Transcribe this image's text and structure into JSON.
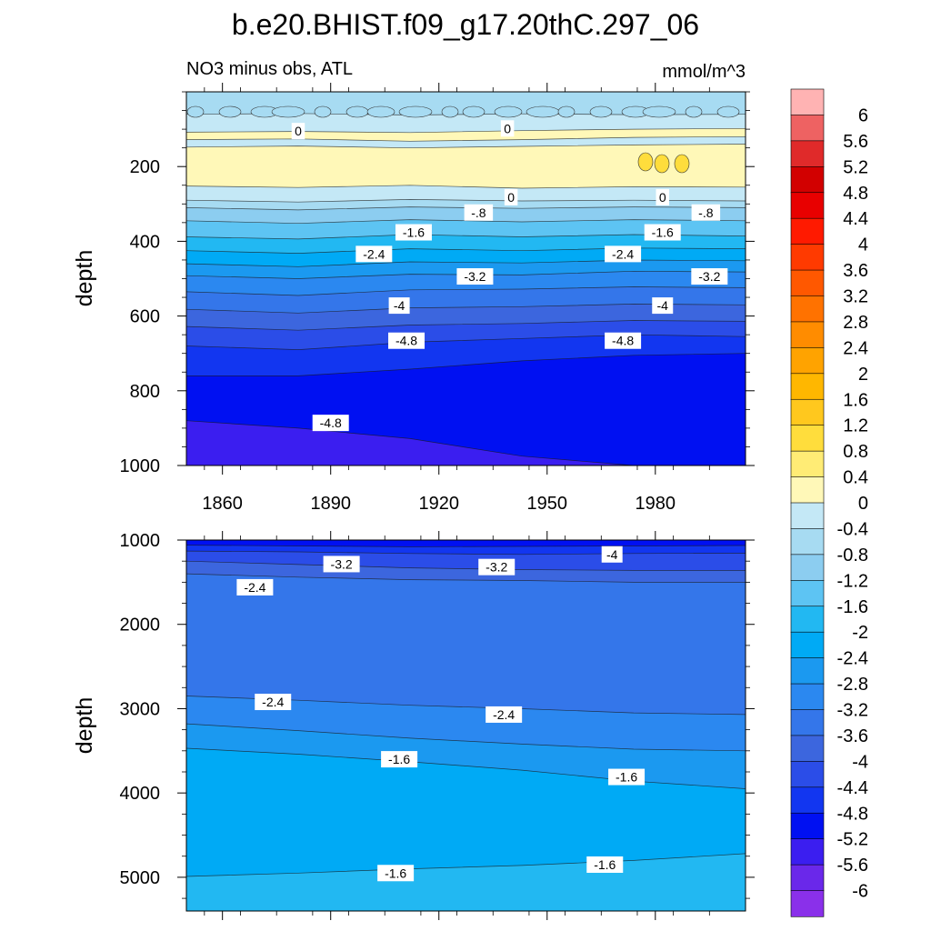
{
  "chart_data": [
    {
      "type": "contour",
      "figure_title": "b.e20.BHIST.f09_g17.20thC.297_06",
      "title_left": "NO3 minus obs, ATL",
      "title_right": "mmol/m^3",
      "ylabel": "depth",
      "xlabel": "",
      "xlim": [
        1850,
        2005
      ],
      "ylim": [
        1000,
        0
      ],
      "x_ticks": [
        1860,
        1890,
        1920,
        1950,
        1980
      ],
      "y_ticks": [
        200,
        400,
        600,
        800,
        1000
      ],
      "panel_position": "top",
      "band_boundaries": [
        {
          "level": 0.0,
          "depth": [
            60,
            58,
            62,
            59,
            61,
            60
          ]
        },
        {
          "level": 0.4,
          "depth": [
            108,
            106,
            109,
            104,
            100,
            98
          ]
        },
        {
          "level": 0.0,
          "depth": [
            128,
            126,
            132,
            128,
            122,
            120
          ]
        },
        {
          "level": 0.4,
          "depth": [
            148,
            145,
            150,
            146,
            142,
            140
          ]
        },
        {
          "level": 0.0,
          "depth": [
            252,
            256,
            250,
            258,
            254,
            255
          ]
        },
        {
          "level": -0.4,
          "depth": [
            290,
            295,
            288,
            292,
            290,
            292
          ]
        },
        {
          "level": -0.8,
          "depth": [
            310,
            316,
            308,
            312,
            308,
            310
          ]
        },
        {
          "level": -1.2,
          "depth": [
            345,
            352,
            342,
            348,
            342,
            345
          ]
        },
        {
          "level": -1.6,
          "depth": [
            388,
            394,
            382,
            388,
            382,
            386
          ]
        },
        {
          "level": -2.0,
          "depth": [
            425,
            432,
            420,
            425,
            418,
            420
          ]
        },
        {
          "level": -2.4,
          "depth": [
            460,
            468,
            455,
            458,
            450,
            452
          ]
        },
        {
          "level": -2.8,
          "depth": [
            492,
            500,
            488,
            490,
            480,
            482
          ]
        },
        {
          "level": -3.2,
          "depth": [
            535,
            545,
            530,
            528,
            522,
            524
          ]
        },
        {
          "level": -3.6,
          "depth": [
            582,
            592,
            578,
            575,
            568,
            570
          ]
        },
        {
          "level": -4.0,
          "depth": [
            628,
            638,
            624,
            620,
            612,
            614
          ]
        },
        {
          "level": -4.4,
          "depth": [
            680,
            690,
            670,
            660,
            650,
            655
          ]
        },
        {
          "level": -4.8,
          "depth": [
            760,
            760,
            742,
            720,
            705,
            700
          ]
        },
        {
          "level": -5.2,
          "depth": [
            880,
            900,
            928,
            975,
            1000,
            1000
          ]
        }
      ],
      "contour_labels": [
        {
          "text": "0",
          "year": 1881,
          "depth": 105
        },
        {
          "text": "0",
          "year": 1939,
          "depth": 98
        },
        {
          "text": "0",
          "year": 1940,
          "depth": 282
        },
        {
          "text": "0",
          "year": 1982,
          "depth": 282
        },
        {
          "text": "-.8",
          "year": 1931,
          "depth": 323
        },
        {
          "text": "-.8",
          "year": 1994,
          "depth": 323
        },
        {
          "text": "-1.6",
          "year": 1913,
          "depth": 376
        },
        {
          "text": "-1.6",
          "year": 1982,
          "depth": 376
        },
        {
          "text": "-2.4",
          "year": 1902,
          "depth": 434
        },
        {
          "text": "-2.4",
          "year": 1971,
          "depth": 434
        },
        {
          "text": "-3.2",
          "year": 1930,
          "depth": 494
        },
        {
          "text": "-3.2",
          "year": 1995,
          "depth": 494
        },
        {
          "text": "-4",
          "year": 1909,
          "depth": 572
        },
        {
          "text": "-4",
          "year": 1982,
          "depth": 572
        },
        {
          "text": "-4.8",
          "year": 1911,
          "depth": 666
        },
        {
          "text": "-4.8",
          "year": 1971,
          "depth": 666
        },
        {
          "text": "-4.8",
          "year": 1890,
          "depth": 886
        }
      ]
    },
    {
      "type": "contour",
      "ylabel": "depth",
      "xlabel": "",
      "xlim": [
        1850,
        2005
      ],
      "ylim": [
        5400,
        1000
      ],
      "x_ticks": [
        1860,
        1890,
        1920,
        1950,
        1980
      ],
      "y_ticks": [
        1000,
        2000,
        3000,
        4000,
        5000
      ],
      "panel_position": "bottom",
      "band_boundaries": [
        {
          "level": -4.4,
          "depth": [
            1060,
            1070,
            1080,
            1075,
            1070,
            1065
          ]
        },
        {
          "level": -4.0,
          "depth": [
            1130,
            1140,
            1160,
            1170,
            1160,
            1155
          ]
        },
        {
          "level": -3.6,
          "depth": [
            1250,
            1290,
            1330,
            1350,
            1360,
            1360
          ]
        },
        {
          "level": -3.2,
          "depth": [
            1400,
            1440,
            1470,
            1480,
            1500,
            1500
          ]
        },
        {
          "level": -2.8,
          "depth": [
            2850,
            2900,
            2960,
            3000,
            3050,
            3070
          ]
        },
        {
          "level": -2.4,
          "depth": [
            3180,
            3260,
            3350,
            3420,
            3480,
            3500
          ]
        },
        {
          "level": -2.0,
          "depth": [
            3470,
            3540,
            3630,
            3730,
            3860,
            3950
          ]
        },
        {
          "level": -1.6,
          "depth": [
            4990,
            4950,
            4900,
            4860,
            4800,
            4720
          ]
        }
      ],
      "contour_labels": [
        {
          "text": "-3.2",
          "year": 1893,
          "depth": 1285
        },
        {
          "text": "-3.2",
          "year": 1936,
          "depth": 1320
        },
        {
          "text": "-4",
          "year": 1968,
          "depth": 1170
        },
        {
          "text": "-2.4",
          "year": 1869,
          "depth": 1560
        },
        {
          "text": "-2.4",
          "year": 1874,
          "depth": 2920
        },
        {
          "text": "-2.4",
          "year": 1938,
          "depth": 3070
        },
        {
          "text": "-1.6",
          "year": 1909,
          "depth": 3600
        },
        {
          "text": "-1.6",
          "year": 1972,
          "depth": 3810
        },
        {
          "text": "-1.6",
          "year": 1908,
          "depth": 4950
        },
        {
          "text": "-1.6",
          "year": 1966,
          "depth": 4850
        }
      ]
    }
  ],
  "colorbar": {
    "labels": [
      "6",
      "5.6",
      "5.2",
      "4.8",
      "4.4",
      "4",
      "3.6",
      "3.2",
      "2.8",
      "2.4",
      "2",
      "1.6",
      "1.2",
      "0.8",
      "0.4",
      "0",
      "-0.4",
      "-0.8",
      "-1.2",
      "-1.6",
      "-2",
      "-2.4",
      "-2.8",
      "-3.2",
      "-3.6",
      "-4",
      "-4.4",
      "-4.8",
      "-5.2",
      "-5.6",
      "-6"
    ],
    "colors": [
      "#ffb3b3",
      "#ee6262",
      "#e02a2a",
      "#d20000",
      "#e80000",
      "#ff1a00",
      "#ff3a00",
      "#ff5800",
      "#ff7200",
      "#ff8c00",
      "#ffa300",
      "#ffb700",
      "#ffc81e",
      "#ffdd3c",
      "#ffec75",
      "#fff8b8",
      "#c4e8f6",
      "#a7dbf2",
      "#8ccdf0",
      "#5dc4f3",
      "#22b8f2",
      "#00aaf5",
      "#1b99f0",
      "#2b88f0",
      "#3476ea",
      "#3c66de",
      "#2b4de8",
      "#1236f0",
      "#0010f2",
      "#3b1ef0",
      "#6a28ea",
      "#8a30ea"
    ]
  }
}
